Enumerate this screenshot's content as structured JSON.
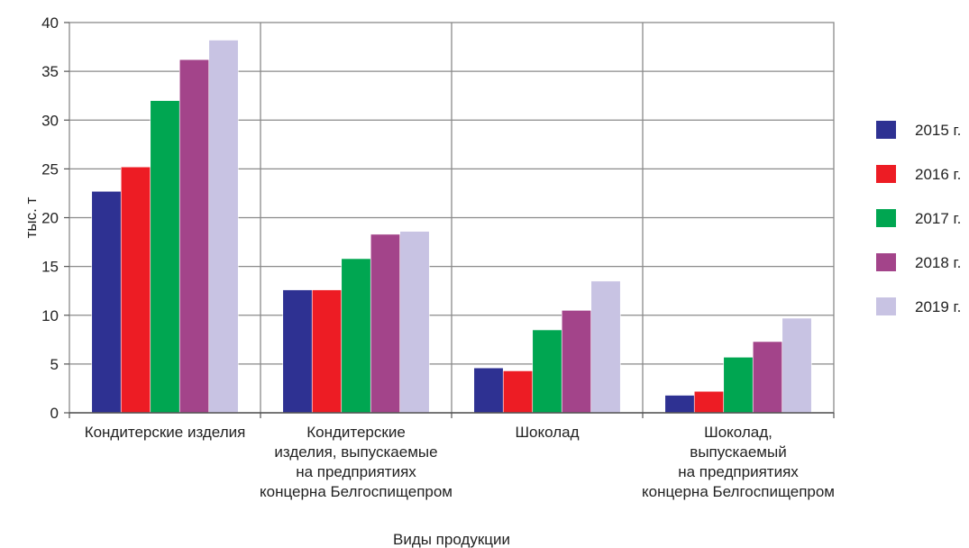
{
  "chart_data": {
    "type": "bar",
    "title": "",
    "xlabel": "Виды продукции",
    "ylabel": "тыс. т",
    "ylim": [
      0,
      40
    ],
    "yticks": [
      0,
      5,
      10,
      15,
      20,
      25,
      30,
      35,
      40
    ],
    "grid": true,
    "legend_position": "right",
    "categories": [
      [
        "Кондитерские изделия"
      ],
      [
        "Кондитерские",
        "изделия, выпускаемые",
        "на предприятиях",
        "концерна Белгоспищепром"
      ],
      [
        "Шоколад"
      ],
      [
        "Шоколад,",
        "выпускаемый",
        "на предприятиях",
        "концерна Белгоспищепром"
      ]
    ],
    "series": [
      {
        "name": "2015 г.",
        "color": "#2e3192",
        "values": [
          22.7,
          12.6,
          4.6,
          1.8
        ]
      },
      {
        "name": "2016 г.",
        "color": "#ed1c24",
        "values": [
          25.2,
          12.6,
          4.3,
          2.2
        ]
      },
      {
        "name": "2017 г.",
        "color": "#00a651",
        "values": [
          32.0,
          15.8,
          8.5,
          5.7
        ]
      },
      {
        "name": "2018 г.",
        "color": "#a3448a",
        "values": [
          36.2,
          18.3,
          10.5,
          7.3
        ]
      },
      {
        "name": "2019 г.",
        "color": "#c8c3e3",
        "values": [
          38.2,
          18.6,
          13.5,
          9.7
        ]
      }
    ]
  }
}
